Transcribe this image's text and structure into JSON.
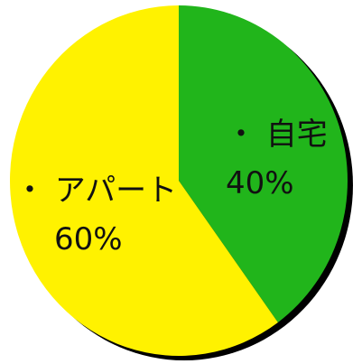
{
  "chart_data": {
    "type": "pie",
    "title": "",
    "slices": [
      {
        "label": "・ 自宅",
        "value": 40,
        "value_text": "40%",
        "color": "#21b51b"
      },
      {
        "label": "・ アパート",
        "value": 60,
        "value_text": "60%",
        "color": "#fff200"
      }
    ],
    "start": "12 o'clock",
    "direction": "clockwise",
    "shadow": "black drop shadow to the bottom-right",
    "legend": "none (labels drawn inside the slices)"
  }
}
